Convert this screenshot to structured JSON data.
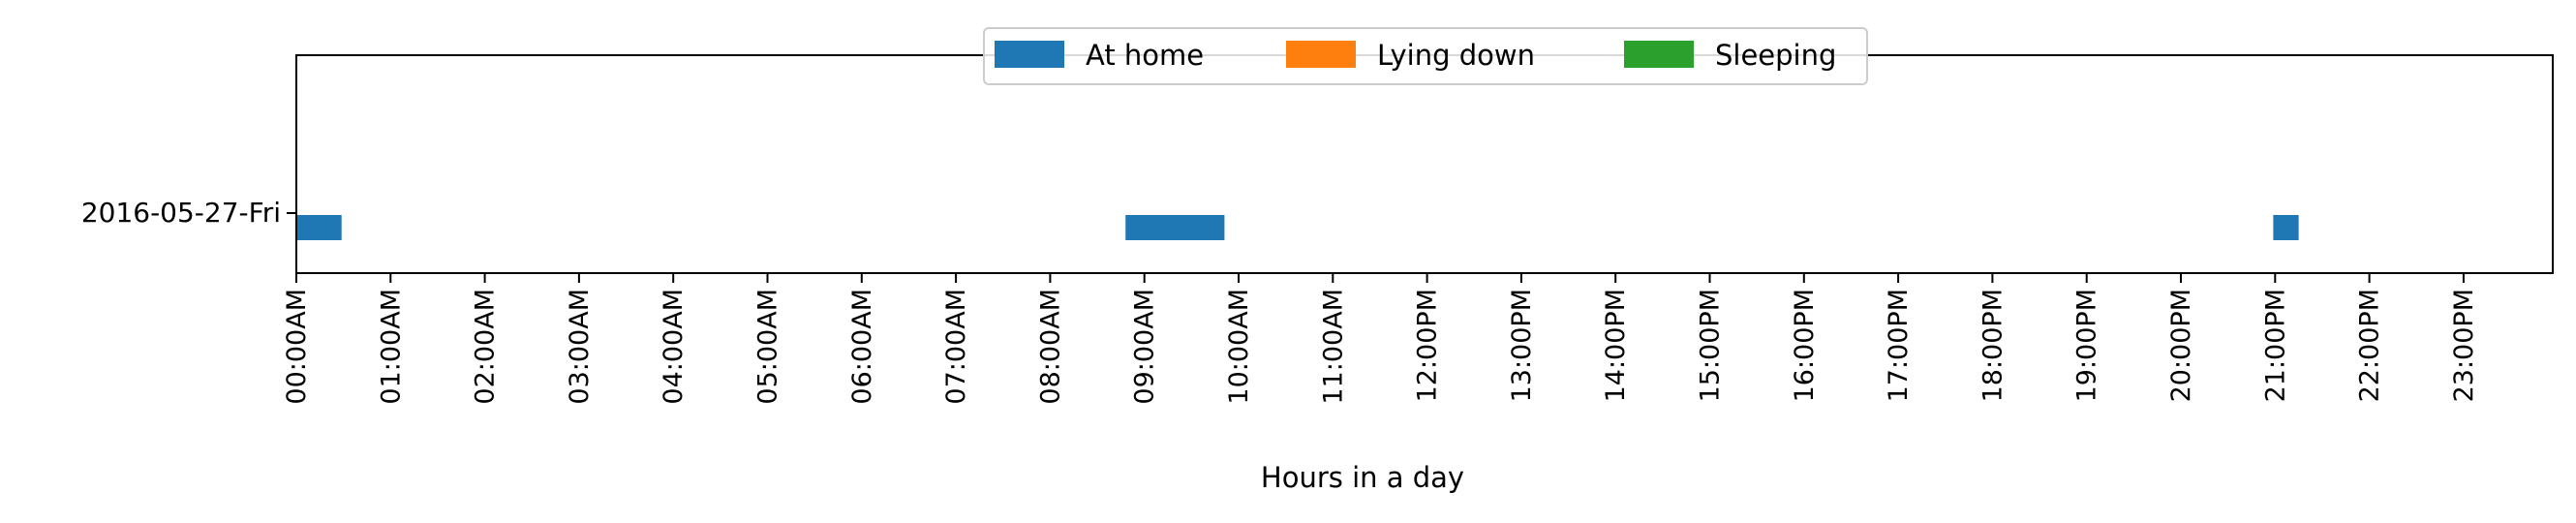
{
  "chart_data": {
    "type": "bar",
    "orientation": "horizontal-timeline",
    "xlabel": "Hours in a day",
    "xlim": [
      0,
      24
    ],
    "x_ticks": [
      {
        "value": 0,
        "label": "00:00AM"
      },
      {
        "value": 1,
        "label": "01:00AM"
      },
      {
        "value": 2,
        "label": "02:00AM"
      },
      {
        "value": 3,
        "label": "03:00AM"
      },
      {
        "value": 4,
        "label": "04:00AM"
      },
      {
        "value": 5,
        "label": "05:00AM"
      },
      {
        "value": 6,
        "label": "06:00AM"
      },
      {
        "value": 7,
        "label": "07:00AM"
      },
      {
        "value": 8,
        "label": "08:00AM"
      },
      {
        "value": 9,
        "label": "09:00AM"
      },
      {
        "value": 10,
        "label": "10:00AM"
      },
      {
        "value": 11,
        "label": "11:00AM"
      },
      {
        "value": 12,
        "label": "12:00PM"
      },
      {
        "value": 13,
        "label": "13:00PM"
      },
      {
        "value": 14,
        "label": "14:00PM"
      },
      {
        "value": 15,
        "label": "15:00PM"
      },
      {
        "value": 16,
        "label": "16:00PM"
      },
      {
        "value": 17,
        "label": "17:00PM"
      },
      {
        "value": 18,
        "label": "18:00PM"
      },
      {
        "value": 19,
        "label": "19:00PM"
      },
      {
        "value": 20,
        "label": "20:00PM"
      },
      {
        "value": 21,
        "label": "21:00PM"
      },
      {
        "value": 22,
        "label": "22:00PM"
      },
      {
        "value": 23,
        "label": "23:00PM"
      }
    ],
    "rows": [
      "2016-05-27-Fri"
    ],
    "legend": {
      "placement": "top-center",
      "entries": [
        {
          "name": "At home",
          "color": "#1f77b4"
        },
        {
          "name": "Lying down",
          "color": "#ff7f0e"
        },
        {
          "name": "Sleeping",
          "color": "#2ca02c"
        }
      ]
    },
    "series": [
      {
        "name": "At home",
        "color": "#1f77b4",
        "row": "2016-05-27-Fri",
        "intervals": [
          [
            0.0,
            0.48
          ],
          [
            8.8,
            9.85
          ],
          [
            20.98,
            21.25
          ]
        ]
      },
      {
        "name": "Lying down",
        "color": "#ff7f0e",
        "row": "2016-05-27-Fri",
        "intervals": []
      },
      {
        "name": "Sleeping",
        "color": "#2ca02c",
        "row": "2016-05-27-Fri",
        "intervals": []
      }
    ],
    "grid": false
  }
}
